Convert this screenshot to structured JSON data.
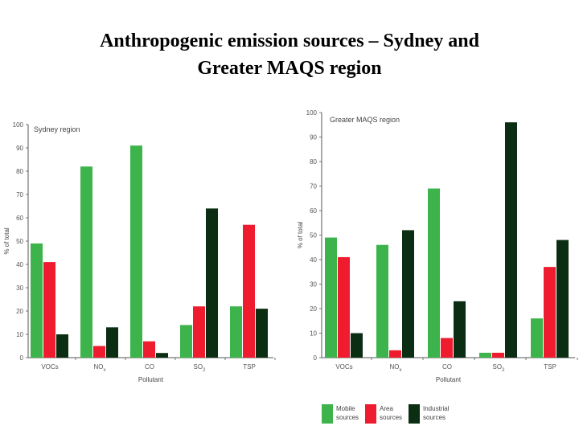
{
  "title": {
    "line1": "Anthropogenic emission sources – Sydney and",
    "line2": "Greater MAQS region"
  },
  "colors": {
    "mobile": "#3cb44b",
    "area": "#ee1c2e",
    "industrial": "#0b2d12"
  },
  "legend": [
    {
      "series": "mobile",
      "line1": "Mobile",
      "line2": "sources"
    },
    {
      "series": "area",
      "line1": "Area",
      "line2": "sources"
    },
    {
      "series": "industrial",
      "line1": "Industrial",
      "line2": "sources"
    }
  ],
  "chart_data": [
    {
      "type": "bar",
      "title": "Sydney region",
      "ylabel": "% of total",
      "xlabel": "Pollutant",
      "ylim": [
        0,
        100
      ],
      "yticks": [
        0,
        10,
        20,
        30,
        40,
        50,
        60,
        70,
        80,
        90,
        100
      ],
      "categories": [
        "VOCs",
        "NOx",
        "CO",
        "SO2",
        "TSP"
      ],
      "series": [
        {
          "key": "mobile",
          "values": [
            49,
            82,
            91,
            14,
            22
          ]
        },
        {
          "key": "area",
          "values": [
            41,
            5,
            7,
            22,
            57
          ]
        },
        {
          "key": "industrial",
          "values": [
            10,
            13,
            2,
            64,
            21
          ]
        }
      ]
    },
    {
      "type": "bar",
      "title": "Greater MAQS region",
      "ylabel": "% of total",
      "xlabel": "Pollutant",
      "ylim": [
        0,
        100
      ],
      "yticks": [
        0,
        10,
        20,
        30,
        40,
        50,
        60,
        70,
        80,
        90,
        100
      ],
      "categories": [
        "VOCs",
        "NOx",
        "CO",
        "SO2",
        "TSP"
      ],
      "series": [
        {
          "key": "mobile",
          "values": [
            49,
            46,
            69,
            2,
            16
          ]
        },
        {
          "key": "area",
          "values": [
            41,
            3,
            8,
            2,
            37
          ]
        },
        {
          "key": "industrial",
          "values": [
            10,
            52,
            23,
            96,
            48
          ]
        }
      ]
    }
  ]
}
